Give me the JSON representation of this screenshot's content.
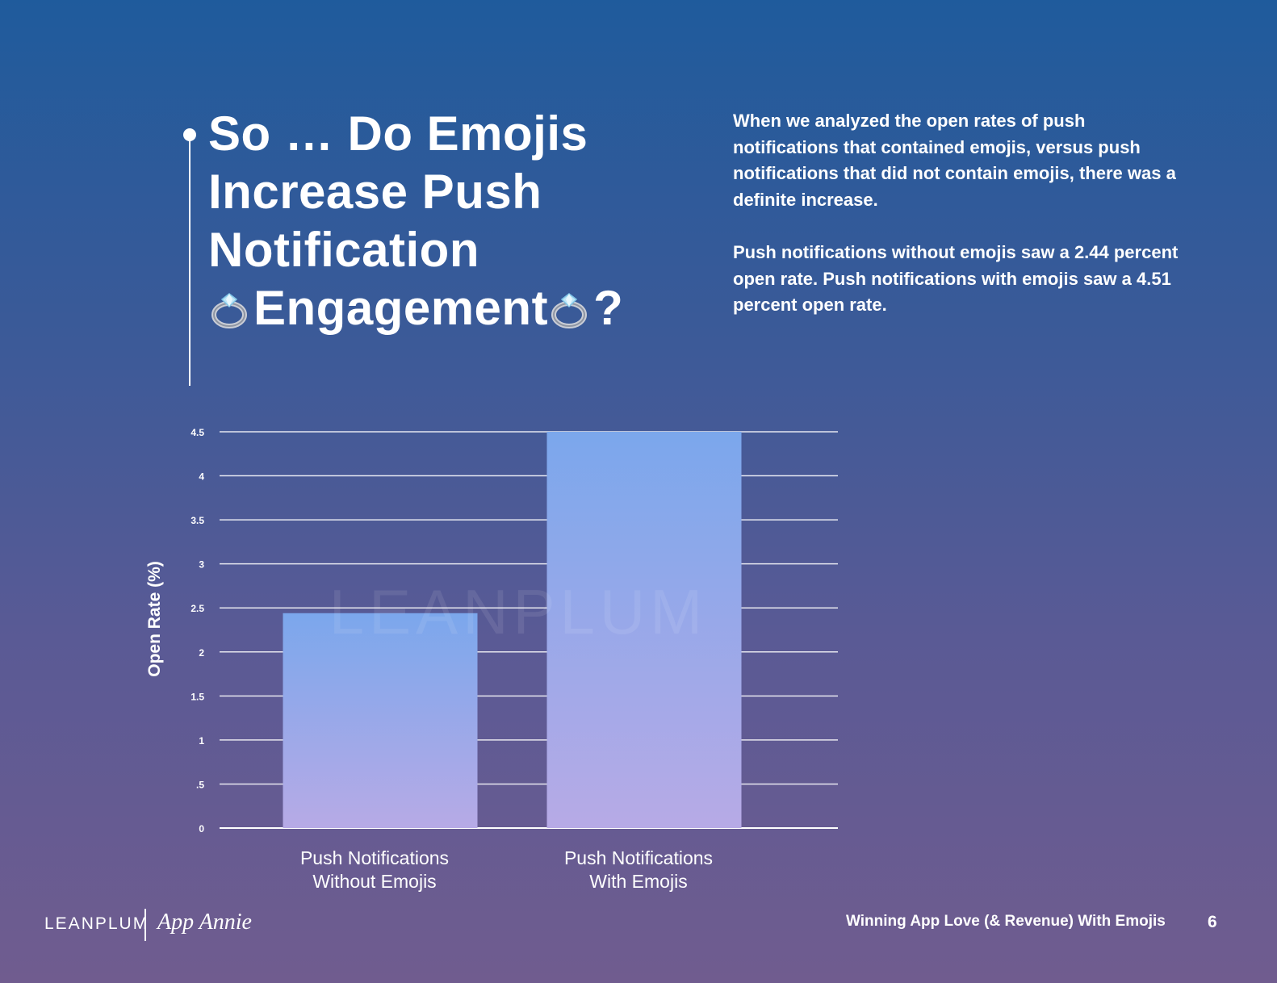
{
  "title": {
    "line1": "So … Do Emojis",
    "line2": "Increase Push",
    "line3": "Notification",
    "line4": "Engagement",
    "suffix": "?"
  },
  "title_icon": "ring-emoji-icon",
  "intro": {
    "paragraph1": "When we analyzed the open rates of push notifications that contained emojis, versus push notifications that did not contain emojis, there was a definite increase.",
    "paragraph2": "Push notifications without emojis saw a 2.44 percent open rate. Push notifications with emojis saw a 4.51 percent open rate."
  },
  "chart_data": {
    "type": "bar",
    "title": "",
    "xlabel": "",
    "ylabel": "Open Rate  (%)",
    "categories": [
      [
        "Push Notifications",
        "Without Emojis"
      ],
      [
        "Push Notifications",
        "With Emojis"
      ]
    ],
    "values": [
      2.44,
      4.51
    ],
    "ylim": [
      0,
      4.5
    ],
    "yticks": [
      0,
      0.5,
      1,
      1.5,
      2,
      2.5,
      3,
      3.5,
      4,
      4.5
    ],
    "ytick_labels": [
      "0",
      ".5",
      "1",
      "1.5",
      "2",
      "2.5",
      "3",
      "3.5",
      "4",
      "4.5"
    ],
    "grid": true,
    "watermark": "LEANPLUM",
    "bar_color_top": "#7ba7ec",
    "bar_color_bottom": "#b7aae6"
  },
  "footer": {
    "logo_left": "LEANPLUM",
    "logo_right": "App Annie",
    "doc_title": "Winning App Love (& Revenue) With Emojis",
    "page_number": "6"
  }
}
